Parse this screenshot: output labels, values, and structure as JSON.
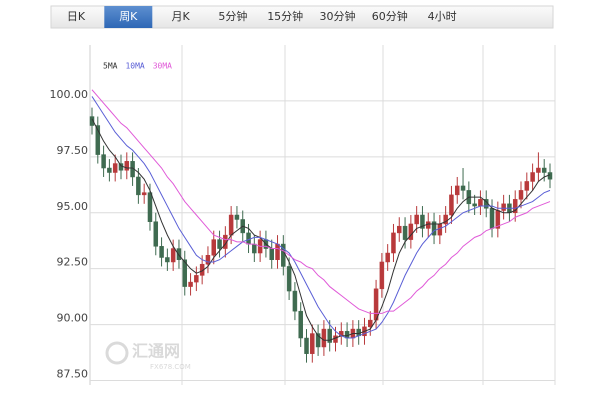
{
  "tabs": [
    "日K",
    "周K",
    "月K",
    "5分钟",
    "15分钟",
    "30分钟",
    "60分钟",
    "4小时"
  ],
  "active_tab": 1,
  "watermark": {
    "name": "汇通网",
    "site": "FX678.COM"
  },
  "chart_data": {
    "type": "candlestick",
    "up_color": "#b8393b",
    "down_color": "#3f6b50",
    "ylim": [
      87.3,
      102.5
    ],
    "yticks": [
      {
        "value": 87.5,
        "label": "87.50"
      },
      {
        "value": 90,
        "label": "90.00"
      },
      {
        "value": 92.5,
        "label": "92.50"
      },
      {
        "value": 95,
        "label": "95.00"
      },
      {
        "value": 97.5,
        "label": "97.50"
      },
      {
        "value": 100,
        "label": "100.00"
      }
    ],
    "grid": true,
    "open": [
      99.3,
      98.9,
      97.6,
      97.0,
      96.8,
      97.2,
      96.9,
      97.3,
      96.6,
      95.8,
      95.9,
      94.6,
      93.5,
      93.0,
      92.8,
      93.4,
      92.9,
      91.7,
      91.9,
      92.2,
      92.7,
      93.1,
      93.8,
      93.4,
      94.0,
      94.9,
      94.7,
      94.1,
      93.6,
      93.2,
      93.8,
      93.4,
      92.9,
      93.6,
      92.6,
      91.5,
      90.6,
      89.4,
      88.7,
      89.6,
      89.0,
      89.8,
      89.2,
      89.5,
      89.7,
      89.4,
      89.8,
      89.5,
      89.9,
      90.2,
      91.6,
      92.8,
      93.2,
      94.1,
      94.4,
      93.8,
      94.5,
      94.9,
      94.3,
      94.6,
      94.0,
      94.5,
      94.9,
      95.8,
      96.2,
      96.0,
      95.4,
      95.3,
      95.6,
      95.2,
      94.3,
      95.1,
      95.4,
      95.0,
      95.6,
      96.0,
      96.4,
      96.8,
      97.0,
      96.8
    ],
    "high": [
      99.7,
      99.3,
      98.0,
      97.4,
      97.6,
      97.6,
      97.7,
      97.7,
      97.0,
      96.3,
      96.3,
      95.0,
      93.9,
      93.4,
      93.8,
      93.8,
      93.3,
      92.3,
      92.6,
      93.1,
      93.5,
      94.2,
      94.2,
      94.4,
      95.3,
      95.3,
      95.1,
      94.5,
      94.0,
      94.2,
      94.2,
      93.8,
      94.0,
      94.0,
      93.0,
      91.9,
      91.0,
      89.8,
      90.0,
      90.0,
      90.2,
      90.2,
      89.9,
      90.1,
      90.1,
      90.2,
      90.2,
      90.3,
      90.6,
      92.0,
      93.2,
      93.6,
      94.5,
      94.8,
      94.8,
      94.9,
      95.3,
      95.3,
      95.0,
      95.0,
      94.9,
      95.3,
      96.2,
      96.6,
      97.0,
      96.4,
      95.8,
      96.0,
      96.0,
      95.6,
      95.5,
      95.8,
      95.8,
      96.0,
      96.4,
      96.8,
      97.2,
      97.7,
      97.4,
      97.2
    ],
    "low": [
      98.5,
      97.2,
      96.6,
      96.4,
      96.4,
      96.5,
      96.5,
      96.2,
      95.4,
      95.4,
      94.2,
      93.1,
      92.6,
      92.4,
      92.4,
      92.5,
      91.3,
      91.3,
      91.5,
      91.8,
      92.3,
      92.7,
      93.0,
      93.0,
      93.6,
      94.3,
      93.7,
      93.2,
      92.8,
      92.8,
      93.0,
      92.5,
      92.5,
      92.2,
      91.1,
      90.2,
      89.0,
      88.3,
      88.3,
      88.6,
      88.6,
      88.8,
      88.8,
      89.1,
      89.0,
      89.0,
      89.1,
      89.1,
      89.5,
      89.8,
      91.2,
      92.4,
      92.8,
      93.7,
      93.4,
      93.4,
      94.1,
      93.9,
      93.9,
      93.6,
      93.6,
      94.1,
      94.5,
      95.4,
      95.6,
      95.0,
      94.9,
      94.9,
      94.8,
      93.9,
      93.9,
      94.7,
      94.6,
      94.6,
      95.2,
      95.6,
      96.0,
      96.4,
      96.4,
      96.1
    ],
    "close": [
      98.9,
      97.6,
      97.0,
      96.8,
      97.2,
      96.9,
      97.3,
      96.6,
      95.8,
      95.9,
      94.6,
      93.5,
      93.0,
      92.8,
      93.4,
      92.9,
      91.7,
      91.9,
      92.2,
      92.7,
      93.1,
      93.8,
      93.4,
      94.0,
      94.9,
      94.7,
      94.1,
      93.6,
      93.2,
      93.8,
      93.4,
      92.9,
      93.6,
      92.6,
      91.5,
      90.6,
      89.4,
      88.7,
      89.6,
      89.0,
      89.8,
      89.2,
      89.5,
      89.7,
      89.4,
      89.8,
      89.5,
      89.9,
      90.2,
      91.6,
      92.8,
      93.2,
      94.1,
      94.4,
      93.8,
      94.5,
      94.9,
      94.3,
      94.6,
      94.0,
      94.5,
      94.9,
      95.8,
      96.2,
      96.0,
      95.4,
      95.3,
      95.6,
      95.2,
      94.3,
      95.1,
      95.4,
      95.0,
      95.6,
      96.0,
      96.4,
      96.8,
      97.0,
      96.8,
      96.5
    ],
    "series": [
      {
        "name": "5MA",
        "color": "#333333",
        "values": [
          99.2,
          98.7,
          98.2,
          97.8,
          97.5,
          97.1,
          97.0,
          97.0,
          96.8,
          96.5,
          96.0,
          95.3,
          94.6,
          94.0,
          93.5,
          93.1,
          92.8,
          92.5,
          92.3,
          92.4,
          92.6,
          93.0,
          93.3,
          93.6,
          94.0,
          94.2,
          94.4,
          94.3,
          94.0,
          93.9,
          93.6,
          93.4,
          93.4,
          93.3,
          92.8,
          92.2,
          91.3,
          90.4,
          89.9,
          89.5,
          89.3,
          89.3,
          89.4,
          89.5,
          89.5,
          89.6,
          89.6,
          89.7,
          89.8,
          90.2,
          90.8,
          91.5,
          92.4,
          93.2,
          93.7,
          94.0,
          94.3,
          94.4,
          94.5,
          94.5,
          94.5,
          94.6,
          94.8,
          95.2,
          95.5,
          95.7,
          95.7,
          95.7,
          95.5,
          95.2,
          95.1,
          95.0,
          95.0,
          95.1,
          95.4,
          95.7,
          96.0,
          96.4,
          96.6,
          96.7
        ]
      },
      {
        "name": "10MA",
        "color": "#5a5fd6",
        "values": [
          100.2,
          99.8,
          99.4,
          99.0,
          98.6,
          98.3,
          98.0,
          97.8,
          97.5,
          97.2,
          96.8,
          96.3,
          95.8,
          95.3,
          94.8,
          94.3,
          93.9,
          93.5,
          93.1,
          92.9,
          92.8,
          92.8,
          92.9,
          93.1,
          93.3,
          93.5,
          93.7,
          93.8,
          93.9,
          93.9,
          93.8,
          93.7,
          93.6,
          93.4,
          93.2,
          92.8,
          92.3,
          91.8,
          91.3,
          90.8,
          90.4,
          90.0,
          89.7,
          89.5,
          89.4,
          89.4,
          89.5,
          89.6,
          89.7,
          89.8,
          90.1,
          90.5,
          91.0,
          91.6,
          92.2,
          92.7,
          93.2,
          93.6,
          93.9,
          94.2,
          94.3,
          94.4,
          94.6,
          94.8,
          95.0,
          95.1,
          95.2,
          95.3,
          95.3,
          95.3,
          95.2,
          95.2,
          95.2,
          95.2,
          95.3,
          95.4,
          95.5,
          95.7,
          95.9,
          96.0
        ]
      },
      {
        "name": "30MA",
        "color": "#e05ad8",
        "values": [
          100.5,
          100.2,
          99.9,
          99.6,
          99.3,
          99.0,
          98.8,
          98.5,
          98.2,
          97.9,
          97.6,
          97.3,
          97.0,
          96.6,
          96.3,
          95.9,
          95.5,
          95.2,
          94.9,
          94.6,
          94.3,
          94.0,
          93.9,
          93.8,
          93.8,
          93.7,
          93.7,
          93.6,
          93.6,
          93.5,
          93.5,
          93.4,
          93.4,
          93.3,
          93.1,
          92.9,
          92.8,
          92.6,
          92.5,
          92.2,
          92.0,
          91.7,
          91.5,
          91.3,
          91.1,
          90.9,
          90.7,
          90.6,
          90.5,
          90.5,
          90.5,
          90.6,
          90.6,
          90.8,
          91.0,
          91.2,
          91.5,
          91.7,
          92.0,
          92.2,
          92.5,
          92.7,
          93.0,
          93.2,
          93.5,
          93.7,
          93.9,
          94.0,
          94.2,
          94.3,
          94.4,
          94.5,
          94.6,
          94.8,
          94.9,
          95.0,
          95.2,
          95.3,
          95.4,
          95.5
        ]
      }
    ]
  }
}
